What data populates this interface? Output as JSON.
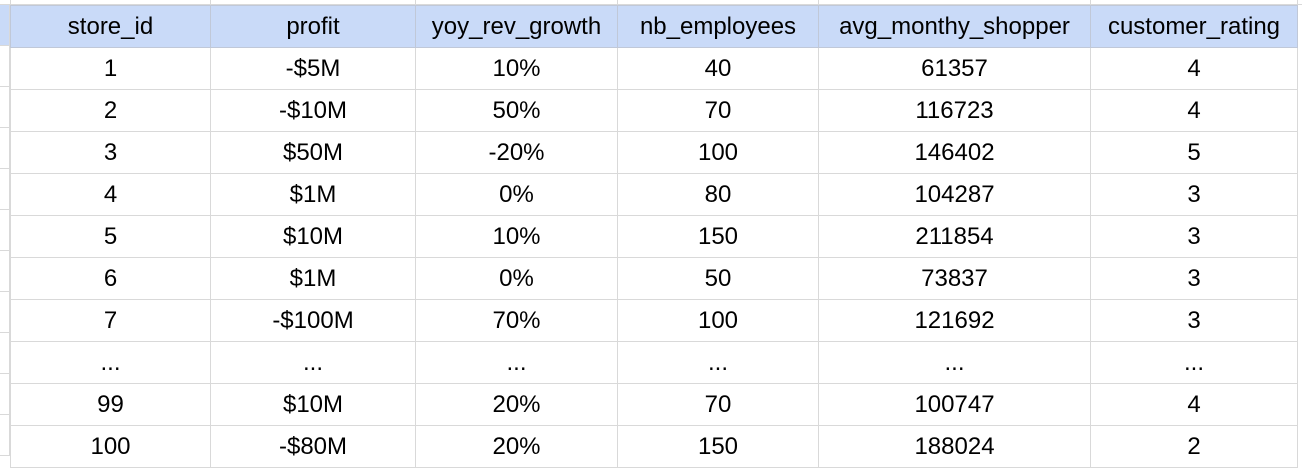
{
  "table": {
    "headers": [
      "store_id",
      "profit",
      "yoy_rev_growth",
      "nb_employees",
      "avg_monthy_shopper",
      "customer_rating"
    ],
    "rows": [
      [
        "1",
        "-$5M",
        "10%",
        "40",
        "61357",
        "4"
      ],
      [
        "2",
        "-$10M",
        "50%",
        "70",
        "116723",
        "4"
      ],
      [
        "3",
        "$50M",
        "-20%",
        "100",
        "146402",
        "5"
      ],
      [
        "4",
        "$1M",
        "0%",
        "80",
        "104287",
        "3"
      ],
      [
        "5",
        "$10M",
        "10%",
        "150",
        "211854",
        "3"
      ],
      [
        "6",
        "$1M",
        "0%",
        "50",
        "73837",
        "3"
      ],
      [
        "7",
        "-$100M",
        "70%",
        "100",
        "121692",
        "3"
      ],
      [
        "...",
        "...",
        "...",
        "...",
        "...",
        "..."
      ],
      [
        "99",
        "$10M",
        "20%",
        "70",
        "100747",
        "4"
      ],
      [
        "100",
        "-$80M",
        "20%",
        "150",
        "188024",
        "2"
      ]
    ]
  },
  "colors": {
    "header_fill": "#c9daf8",
    "gridline": "#d9d9d9",
    "text": "#000000"
  }
}
